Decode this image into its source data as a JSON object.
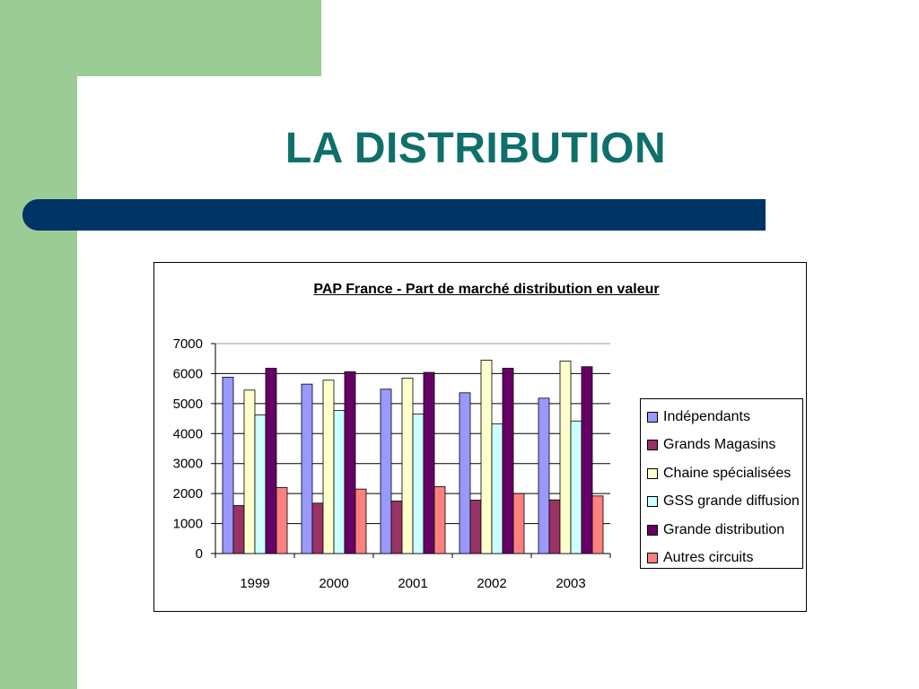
{
  "slide": {
    "title": "LA DISTRIBUTION",
    "colors": {
      "green": "#9ccc95",
      "title": "#0f6f6a",
      "bar": "#003366"
    }
  },
  "chart_data": {
    "type": "bar",
    "title": "PAP France - Part de marché distribution en valeur",
    "xlabel": "",
    "ylabel": "",
    "categories": [
      "1999",
      "2000",
      "2001",
      "2002",
      "2003"
    ],
    "ylim": [
      0,
      7000
    ],
    "yticks": [
      "0",
      "1000",
      "2000",
      "3000",
      "4000",
      "5000",
      "6000",
      "7000"
    ],
    "grid": true,
    "legend_position": "right",
    "series": [
      {
        "name": "Indépendants",
        "color": "#9999ff",
        "values": [
          5880,
          5650,
          5480,
          5360,
          5180
        ]
      },
      {
        "name": "Grands Magasins",
        "color": "#993366",
        "values": [
          1600,
          1680,
          1750,
          1780,
          1790
        ]
      },
      {
        "name": "Chaine spécialisées",
        "color": "#ffffcc",
        "values": [
          5450,
          5780,
          5850,
          6450,
          6420
        ]
      },
      {
        "name": "GSS grande diffusion",
        "color": "#ccffff",
        "values": [
          4620,
          4770,
          4650,
          4320,
          4420
        ]
      },
      {
        "name": "Grande distribution",
        "color": "#660066",
        "values": [
          6180,
          6060,
          6040,
          6180,
          6230
        ]
      },
      {
        "name": "Autres circuits",
        "color": "#ff8080",
        "values": [
          2200,
          2150,
          2230,
          2000,
          1920
        ]
      }
    ]
  }
}
